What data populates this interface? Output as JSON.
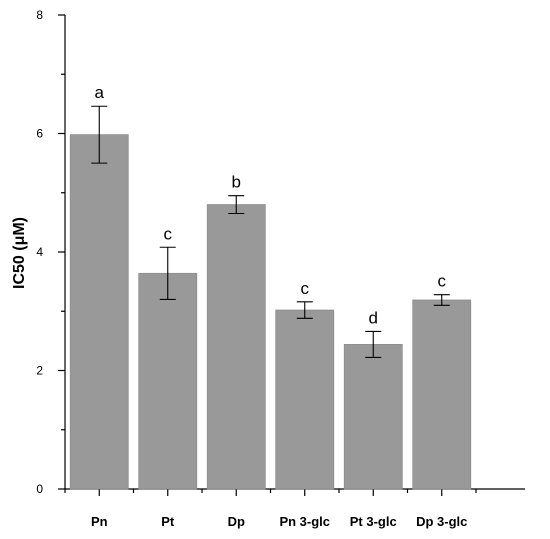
{
  "chart_data": {
    "type": "bar",
    "title": "",
    "xlabel": "",
    "ylabel": "IC50 (μM)",
    "ylim": [
      0,
      8
    ],
    "yticks": [
      0,
      2,
      4,
      6,
      8
    ],
    "categories": [
      "Pn",
      "Pt",
      "Dp",
      "Pn 3-glc",
      "Pt 3-glc",
      "Dp 3-glc"
    ],
    "values": [
      5.98,
      3.64,
      4.8,
      3.02,
      2.44,
      3.19
    ],
    "error": [
      0.48,
      0.44,
      0.15,
      0.14,
      0.22,
      0.09
    ],
    "significance": [
      "a",
      "c",
      "b",
      "c",
      "d",
      "c"
    ],
    "bar_color": "#999999",
    "grid": false
  }
}
